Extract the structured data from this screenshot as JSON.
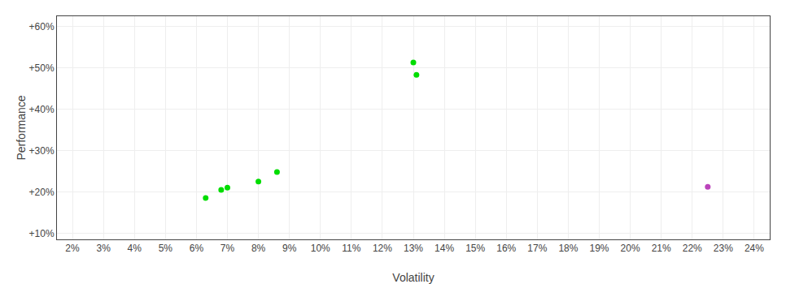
{
  "chart_data": {
    "type": "scatter",
    "xlabel": "Volatility",
    "ylabel": "Performance",
    "series": [
      {
        "color": "#00dd00",
        "x": [
          0.063,
          0.07,
          0.068,
          0.08,
          0.086,
          0.13,
          0.131
        ],
        "values": [
          0.185,
          0.21,
          0.205,
          0.225,
          0.248,
          0.513,
          0.483
        ]
      },
      {
        "color": "#bb44bb",
        "x": [
          0.225
        ],
        "values": [
          0.212
        ]
      }
    ],
    "xlim": [
      0.015,
      0.245
    ],
    "ylim": [
      0.085,
      0.625
    ],
    "xticks": [
      {
        "value": 0.02,
        "label": "2%"
      },
      {
        "value": 0.03,
        "label": "3%"
      },
      {
        "value": 0.04,
        "label": "4%"
      },
      {
        "value": 0.05,
        "label": "5%"
      },
      {
        "value": 0.06,
        "label": "6%"
      },
      {
        "value": 0.07,
        "label": "7%"
      },
      {
        "value": 0.08,
        "label": "8%"
      },
      {
        "value": 0.09,
        "label": "9%"
      },
      {
        "value": 0.1,
        "label": "10%"
      },
      {
        "value": 0.11,
        "label": "11%"
      },
      {
        "value": 0.12,
        "label": "12%"
      },
      {
        "value": 0.13,
        "label": "13%"
      },
      {
        "value": 0.14,
        "label": "14%"
      },
      {
        "value": 0.15,
        "label": "15%"
      },
      {
        "value": 0.16,
        "label": "16%"
      },
      {
        "value": 0.17,
        "label": "17%"
      },
      {
        "value": 0.18,
        "label": "18%"
      },
      {
        "value": 0.19,
        "label": "19%"
      },
      {
        "value": 0.2,
        "label": "20%"
      },
      {
        "value": 0.21,
        "label": "21%"
      },
      {
        "value": 0.22,
        "label": "22%"
      },
      {
        "value": 0.23,
        "label": "23%"
      },
      {
        "value": 0.24,
        "label": "24%"
      }
    ],
    "yticks": [
      {
        "value": 0.1,
        "label": "+10%"
      },
      {
        "value": 0.2,
        "label": "+20%"
      },
      {
        "value": 0.3,
        "label": "+30%"
      },
      {
        "value": 0.4,
        "label": "+40%"
      },
      {
        "value": 0.5,
        "label": "+50%"
      },
      {
        "value": 0.6,
        "label": "+60%"
      }
    ],
    "grid": true
  }
}
